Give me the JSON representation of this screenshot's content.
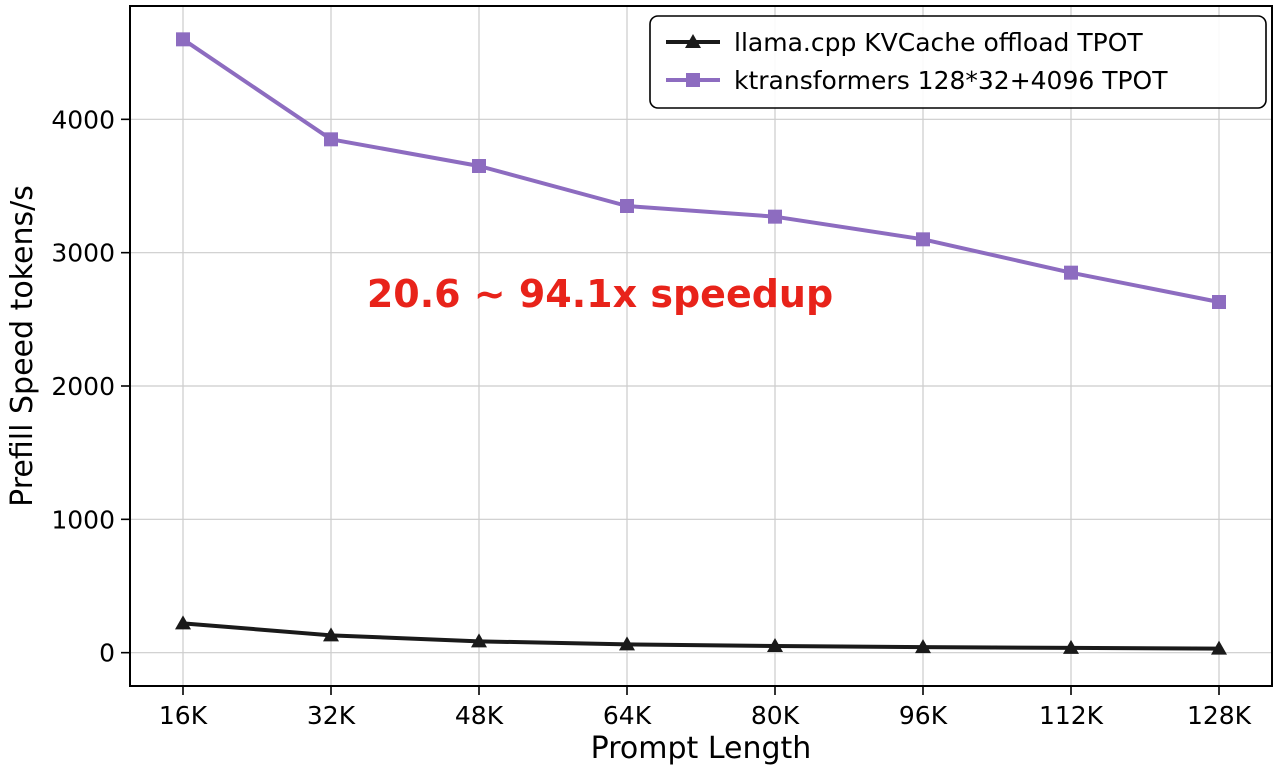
{
  "chart_data": {
    "type": "line",
    "x_categories": [
      "16K",
      "32K",
      "48K",
      "64K",
      "80K",
      "96K",
      "112K",
      "128K"
    ],
    "series": [
      {
        "name": "llama.cpp KVCache offload TPOT",
        "color": "#1a1a1a",
        "marker": "triangle",
        "values": [
          220,
          130,
          85,
          62,
          50,
          42,
          36,
          30
        ]
      },
      {
        "name": "ktransformers 128*32+4096 TPOT",
        "color": "#8d6cc0",
        "marker": "square",
        "values": [
          4600,
          3850,
          3650,
          3350,
          3270,
          3100,
          2850,
          2630
        ]
      }
    ],
    "title": "",
    "xlabel": "Prompt Length",
    "ylabel": "Prefill Speed tokens/s",
    "ylim": [
      -250,
      4850
    ],
    "yticks": [
      0,
      1000,
      2000,
      3000,
      4000
    ],
    "grid": true,
    "grid_color": "#cccccc",
    "legend_position": "top-right",
    "annotation": {
      "text": "20.6 ~ 94.1x speedup",
      "color": "#e8231a"
    }
  }
}
